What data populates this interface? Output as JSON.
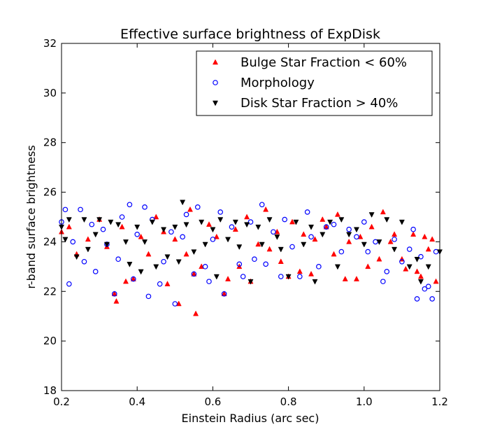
{
  "chart_data": {
    "type": "scatter",
    "title": "Effective surface brightness of ExpDisk",
    "xlabel": "Einstein Radius (arc sec)",
    "ylabel": "r-band surface brightness",
    "xlim": [
      0.2,
      1.2
    ],
    "ylim": [
      18,
      32
    ],
    "xticks": [
      0.2,
      0.4,
      0.6,
      0.8,
      1.0,
      1.2
    ],
    "xtick_labels": [
      "0.2",
      "0.4",
      "0.6",
      "0.8",
      "1.0",
      "1.2"
    ],
    "yticks": [
      18,
      20,
      22,
      24,
      26,
      28,
      30,
      32
    ],
    "ytick_labels": [
      "18",
      "20",
      "22",
      "24",
      "26",
      "28",
      "30",
      "32"
    ],
    "grid": false,
    "legend_position": "top-right",
    "series": [
      {
        "name": "Bulge Star Fraction < 60%",
        "marker": "triangle-up",
        "color": "#ff0000",
        "filled": true,
        "points": [
          [
            0.2,
            24.4
          ],
          [
            0.22,
            24.6
          ],
          [
            0.24,
            23.5
          ],
          [
            0.27,
            24.1
          ],
          [
            0.3,
            24.9
          ],
          [
            0.32,
            23.8
          ],
          [
            0.34,
            21.9
          ],
          [
            0.345,
            21.6
          ],
          [
            0.36,
            24.6
          ],
          [
            0.37,
            22.4
          ],
          [
            0.39,
            22.5
          ],
          [
            0.41,
            24.2
          ],
          [
            0.43,
            23.5
          ],
          [
            0.45,
            25.0
          ],
          [
            0.47,
            24.4
          ],
          [
            0.48,
            22.3
          ],
          [
            0.5,
            24.1
          ],
          [
            0.51,
            21.5
          ],
          [
            0.53,
            23.5
          ],
          [
            0.54,
            25.3
          ],
          [
            0.55,
            22.7
          ],
          [
            0.555,
            21.1
          ],
          [
            0.57,
            23.0
          ],
          [
            0.59,
            24.7
          ],
          [
            0.61,
            24.2
          ],
          [
            0.63,
            21.9
          ],
          [
            0.64,
            22.5
          ],
          [
            0.66,
            24.5
          ],
          [
            0.67,
            23.0
          ],
          [
            0.69,
            25.0
          ],
          [
            0.7,
            22.4
          ],
          [
            0.72,
            23.9
          ],
          [
            0.74,
            25.3
          ],
          [
            0.75,
            23.7
          ],
          [
            0.77,
            24.4
          ],
          [
            0.78,
            23.2
          ],
          [
            0.8,
            22.6
          ],
          [
            0.81,
            24.8
          ],
          [
            0.83,
            22.8
          ],
          [
            0.84,
            24.3
          ],
          [
            0.86,
            22.7
          ],
          [
            0.87,
            24.1
          ],
          [
            0.89,
            24.9
          ],
          [
            0.9,
            24.6
          ],
          [
            0.92,
            23.5
          ],
          [
            0.93,
            25.1
          ],
          [
            0.95,
            22.5
          ],
          [
            0.96,
            24.0
          ],
          [
            0.98,
            22.5
          ],
          [
            0.99,
            24.2
          ],
          [
            1.01,
            23.0
          ],
          [
            1.02,
            24.6
          ],
          [
            1.04,
            23.3
          ],
          [
            1.05,
            25.2
          ],
          [
            1.07,
            24.0
          ],
          [
            1.08,
            24.3
          ],
          [
            1.1,
            23.3
          ],
          [
            1.11,
            22.9
          ],
          [
            1.13,
            24.3
          ],
          [
            1.14,
            22.8
          ],
          [
            1.15,
            22.6
          ],
          [
            1.16,
            24.2
          ],
          [
            1.17,
            23.7
          ],
          [
            1.18,
            24.1
          ],
          [
            1.19,
            22.4
          ]
        ]
      },
      {
        "name": "Morphology",
        "marker": "circle",
        "color": "#0000ff",
        "filled": false,
        "points": [
          [
            0.2,
            24.8
          ],
          [
            0.21,
            25.3
          ],
          [
            0.22,
            22.3
          ],
          [
            0.23,
            24.0
          ],
          [
            0.25,
            25.3
          ],
          [
            0.26,
            23.2
          ],
          [
            0.28,
            24.7
          ],
          [
            0.29,
            22.8
          ],
          [
            0.31,
            24.5
          ],
          [
            0.32,
            23.9
          ],
          [
            0.34,
            21.9
          ],
          [
            0.35,
            23.3
          ],
          [
            0.36,
            25.0
          ],
          [
            0.38,
            25.5
          ],
          [
            0.39,
            22.5
          ],
          [
            0.4,
            24.3
          ],
          [
            0.42,
            25.4
          ],
          [
            0.43,
            21.8
          ],
          [
            0.44,
            24.9
          ],
          [
            0.46,
            22.3
          ],
          [
            0.47,
            23.2
          ],
          [
            0.49,
            24.4
          ],
          [
            0.5,
            21.5
          ],
          [
            0.52,
            24.2
          ],
          [
            0.53,
            25.1
          ],
          [
            0.55,
            22.7
          ],
          [
            0.56,
            25.4
          ],
          [
            0.58,
            23.0
          ],
          [
            0.59,
            22.4
          ],
          [
            0.6,
            24.1
          ],
          [
            0.62,
            25.2
          ],
          [
            0.63,
            21.9
          ],
          [
            0.65,
            24.6
          ],
          [
            0.67,
            23.1
          ],
          [
            0.68,
            22.6
          ],
          [
            0.7,
            24.8
          ],
          [
            0.71,
            23.3
          ],
          [
            0.73,
            25.5
          ],
          [
            0.74,
            23.1
          ],
          [
            0.76,
            24.4
          ],
          [
            0.78,
            22.6
          ],
          [
            0.79,
            24.9
          ],
          [
            0.81,
            23.8
          ],
          [
            0.83,
            22.6
          ],
          [
            0.85,
            25.2
          ],
          [
            0.86,
            24.2
          ],
          [
            0.88,
            23.0
          ],
          [
            0.9,
            24.6
          ],
          [
            0.92,
            24.7
          ],
          [
            0.94,
            23.6
          ],
          [
            0.96,
            24.5
          ],
          [
            0.98,
            24.2
          ],
          [
            1.0,
            24.8
          ],
          [
            1.01,
            23.6
          ],
          [
            1.03,
            24.0
          ],
          [
            1.05,
            22.4
          ],
          [
            1.06,
            22.8
          ],
          [
            1.08,
            24.1
          ],
          [
            1.1,
            23.2
          ],
          [
            1.12,
            23.7
          ],
          [
            1.13,
            24.5
          ],
          [
            1.14,
            21.7
          ],
          [
            1.15,
            23.4
          ],
          [
            1.16,
            22.1
          ],
          [
            1.17,
            22.2
          ],
          [
            1.18,
            21.7
          ],
          [
            1.19,
            23.6
          ]
        ]
      },
      {
        "name": "Disk Star Fraction > 40%",
        "marker": "triangle-down",
        "color": "#000000",
        "filled": true,
        "points": [
          [
            0.2,
            24.6
          ],
          [
            0.21,
            24.1
          ],
          [
            0.22,
            24.9
          ],
          [
            0.24,
            23.4
          ],
          [
            0.26,
            24.9
          ],
          [
            0.27,
            23.7
          ],
          [
            0.29,
            24.3
          ],
          [
            0.3,
            24.9
          ],
          [
            0.32,
            23.9
          ],
          [
            0.33,
            24.8
          ],
          [
            0.35,
            24.7
          ],
          [
            0.37,
            24.0
          ],
          [
            0.38,
            23.1
          ],
          [
            0.4,
            24.6
          ],
          [
            0.41,
            22.8
          ],
          [
            0.42,
            24.0
          ],
          [
            0.44,
            24.8
          ],
          [
            0.45,
            23.0
          ],
          [
            0.47,
            24.5
          ],
          [
            0.48,
            23.4
          ],
          [
            0.5,
            24.6
          ],
          [
            0.51,
            23.2
          ],
          [
            0.52,
            25.6
          ],
          [
            0.53,
            24.7
          ],
          [
            0.55,
            23.6
          ],
          [
            0.57,
            24.8
          ],
          [
            0.58,
            23.9
          ],
          [
            0.6,
            24.5
          ],
          [
            0.61,
            22.6
          ],
          [
            0.62,
            24.9
          ],
          [
            0.64,
            24.1
          ],
          [
            0.66,
            24.8
          ],
          [
            0.67,
            23.8
          ],
          [
            0.69,
            24.7
          ],
          [
            0.7,
            22.4
          ],
          [
            0.72,
            24.6
          ],
          [
            0.73,
            23.9
          ],
          [
            0.75,
            24.9
          ],
          [
            0.77,
            24.2
          ],
          [
            0.78,
            23.7
          ],
          [
            0.8,
            22.6
          ],
          [
            0.82,
            24.8
          ],
          [
            0.84,
            23.9
          ],
          [
            0.86,
            24.6
          ],
          [
            0.87,
            22.4
          ],
          [
            0.89,
            24.3
          ],
          [
            0.91,
            24.8
          ],
          [
            0.93,
            23.0
          ],
          [
            0.94,
            24.9
          ],
          [
            0.96,
            24.3
          ],
          [
            0.98,
            24.5
          ],
          [
            1.0,
            23.9
          ],
          [
            1.02,
            25.1
          ],
          [
            1.04,
            24.0
          ],
          [
            1.06,
            24.9
          ],
          [
            1.08,
            23.7
          ],
          [
            1.1,
            24.8
          ],
          [
            1.12,
            23.0
          ],
          [
            1.14,
            23.3
          ],
          [
            1.15,
            22.4
          ],
          [
            1.17,
            23.0
          ],
          [
            1.2,
            23.6
          ]
        ]
      }
    ]
  }
}
